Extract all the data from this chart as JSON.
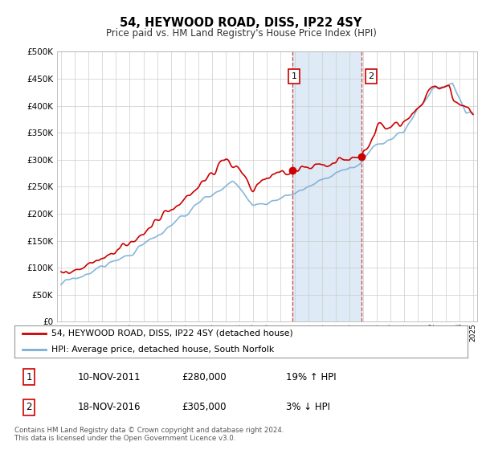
{
  "title": "54, HEYWOOD ROAD, DISS, IP22 4SY",
  "subtitle": "Price paid vs. HM Land Registry's House Price Index (HPI)",
  "ylim": [
    0,
    500000
  ],
  "yticks": [
    0,
    50000,
    100000,
    150000,
    200000,
    250000,
    300000,
    350000,
    400000,
    450000,
    500000
  ],
  "year_start": 1995,
  "year_end": 2025,
  "sale1_date": 2011.86,
  "sale1_price": 280000,
  "sale2_date": 2016.88,
  "sale2_price": 305000,
  "legend_line1": "54, HEYWOOD ROAD, DISS, IP22 4SY (detached house)",
  "legend_line2": "HPI: Average price, detached house, South Norfolk",
  "table_row1": [
    "1",
    "10-NOV-2011",
    "£280,000",
    "19% ↑ HPI"
  ],
  "table_row2": [
    "2",
    "18-NOV-2016",
    "£305,000",
    "3% ↓ HPI"
  ],
  "footnote": "Contains HM Land Registry data © Crown copyright and database right 2024.\nThis data is licensed under the Open Government Licence v3.0.",
  "hpi_color": "#7bafd4",
  "price_color": "#cc0000",
  "shade_color": "#deeaf5",
  "grid_color": "#cccccc",
  "bg_color": "#ffffff"
}
